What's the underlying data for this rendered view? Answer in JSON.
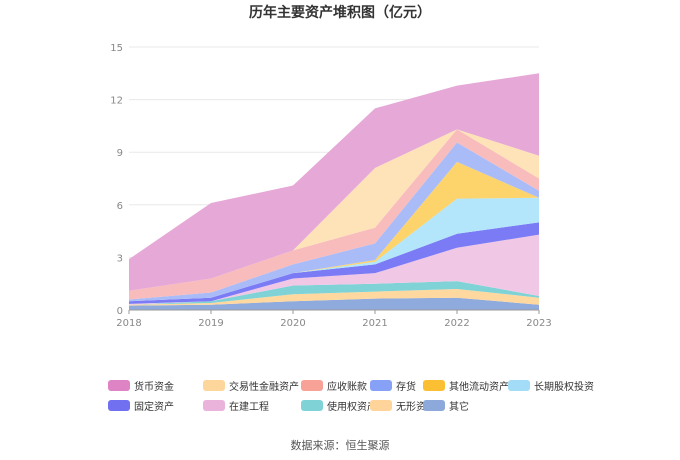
{
  "chart_data": {
    "type": "area",
    "stacked": true,
    "title": "历年主要资产堆积图（亿元）",
    "x": [
      "2018",
      "2019",
      "2020",
      "2021",
      "2022",
      "2023"
    ],
    "ylim": [
      0,
      15
    ],
    "yticks": [
      "0",
      "3",
      "6",
      "9",
      "12",
      "15"
    ],
    "grid": true,
    "legend_position": "bottom",
    "series": [
      {
        "name": "其它",
        "color": "#8faadc",
        "values": [
          0.25,
          0.3,
          0.5,
          0.65,
          0.7,
          0.3
        ]
      },
      {
        "name": "无形资产",
        "color": "#ffd8a0",
        "values": [
          0.05,
          0.1,
          0.4,
          0.4,
          0.5,
          0.4
        ]
      },
      {
        "name": "使用权资产",
        "color": "#7fd3d6",
        "values": [
          0.0,
          0.1,
          0.5,
          0.45,
          0.45,
          0.1
        ]
      },
      {
        "name": "在建工程",
        "color": "#f0c8e6",
        "values": [
          0.05,
          0.0,
          0.4,
          0.6,
          1.9,
          3.5
        ]
      },
      {
        "name": "固定资产",
        "color": "#7b7cf5",
        "values": [
          0.15,
          0.2,
          0.3,
          0.5,
          0.8,
          0.7
        ]
      },
      {
        "name": "长期股权投资",
        "color": "#b3e6fa",
        "values": [
          0.0,
          0.0,
          0.0,
          0.15,
          2.0,
          1.4
        ]
      },
      {
        "name": "其他流动资产",
        "color": "#fdd36b",
        "values": [
          0.0,
          0.0,
          0.0,
          0.1,
          2.1,
          0.0
        ]
      },
      {
        "name": "存货",
        "color": "#aabcf8",
        "values": [
          0.1,
          0.3,
          0.5,
          0.95,
          1.1,
          0.4
        ]
      },
      {
        "name": "应收账款",
        "color": "#f8bcbc",
        "values": [
          0.5,
          0.8,
          0.8,
          0.9,
          0.75,
          0.7
        ]
      },
      {
        "name": "交易性金融资产",
        "color": "#ffe3b8",
        "values": [
          0.0,
          0.0,
          0.0,
          3.4,
          0.0,
          1.3
        ]
      },
      {
        "name": "货币资金",
        "color": "#e6a8d6",
        "values": [
          1.8,
          4.3,
          3.7,
          3.4,
          2.5,
          4.7
        ]
      }
    ],
    "legend_order": [
      "货币资金",
      "交易性金融资产",
      "应收账款",
      "存货",
      "其他流动资产",
      "长期股权投资",
      "固定资产",
      "在建工程",
      "使用权资产",
      "无形资产",
      "其它"
    ],
    "legend_colors": {
      "货币资金": "#de83c4",
      "交易性金融资产": "#fdd69c",
      "应收账款": "#f7a197",
      "存货": "#86a1f6",
      "其他流动资产": "#fbbf33",
      "长期股权投资": "#a3dcf6",
      "固定资产": "#7070f0",
      "在建工程": "#eab3dc",
      "使用权资产": "#7fd3d6",
      "无形资产": "#ffd49b",
      "其它": "#8da9db"
    },
    "source": "数据来源：恒生聚源"
  }
}
